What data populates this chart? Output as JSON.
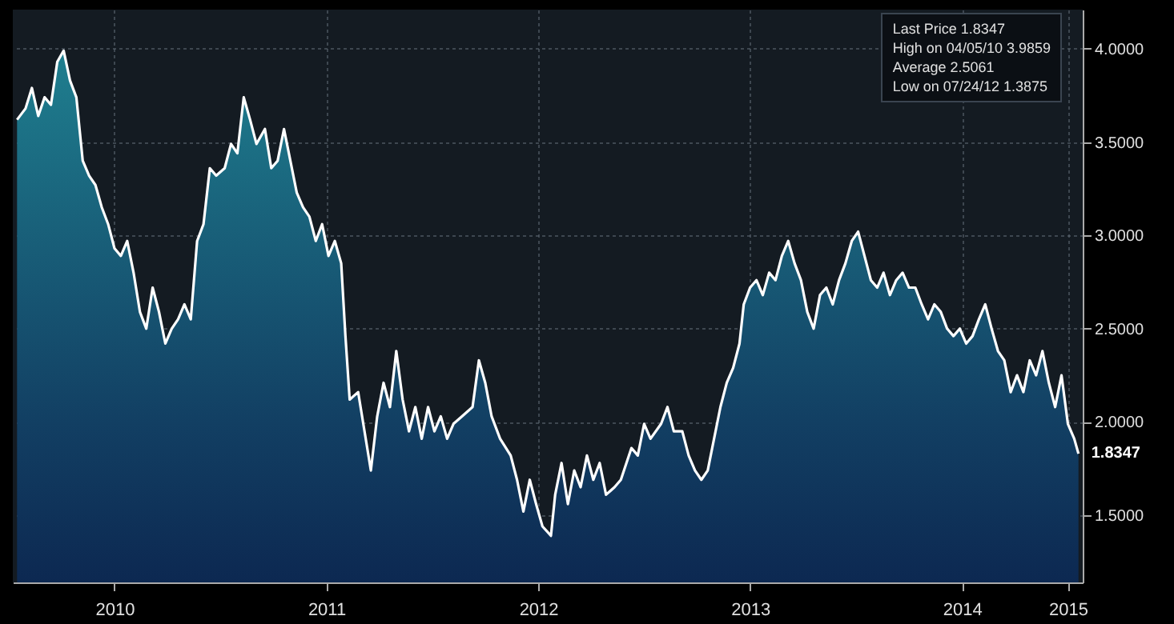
{
  "chart_data": {
    "type": "area",
    "xlim": [
      2010.02,
      2015.07
    ],
    "ylim": [
      1.14,
      4.21
    ],
    "xticks": [
      {
        "value": 2010.5,
        "label": "2010"
      },
      {
        "value": 2011.5,
        "label": "2011"
      },
      {
        "value": 2012.5,
        "label": "2012"
      },
      {
        "value": 2013.5,
        "label": "2013"
      },
      {
        "value": 2014.5,
        "label": "2014"
      },
      {
        "value": 2015.0,
        "label": "2015"
      }
    ],
    "yticks": [
      {
        "value": 1.5,
        "label": "1.5000"
      },
      {
        "value": 2,
        "label": "2.0000"
      },
      {
        "value": 2.5,
        "label": "2.5000"
      },
      {
        "value": 3,
        "label": "3.0000"
      },
      {
        "value": 3.5,
        "label": "3.5000"
      },
      {
        "value": 4,
        "label": "4.0000"
      }
    ],
    "grid": true,
    "x": [
      2010.04,
      2010.08,
      2010.11,
      2010.14,
      2010.17,
      2010.2,
      2010.23,
      2010.26,
      2010.29,
      2010.32,
      2010.35,
      2010.38,
      2010.41,
      2010.44,
      2010.47,
      2010.5,
      2010.53,
      2010.56,
      2010.59,
      2010.62,
      2010.65,
      2010.68,
      2010.71,
      2010.74,
      2010.77,
      2010.8,
      2010.83,
      2010.86,
      2010.89,
      2010.92,
      2010.95,
      2010.98,
      2011.02,
      2011.05,
      2011.08,
      2011.11,
      2011.14,
      2011.17,
      2011.21,
      2011.24,
      2011.27,
      2011.3,
      2011.33,
      2011.36,
      2011.39,
      2011.42,
      2011.45,
      2011.48,
      2011.51,
      2011.54,
      2011.57,
      2011.59,
      2011.61,
      2011.65,
      2011.68,
      2011.71,
      2011.74,
      2011.77,
      2011.8,
      2011.83,
      2011.86,
      2011.89,
      2011.92,
      2011.95,
      2011.98,
      2012.01,
      2012.04,
      2012.07,
      2012.1,
      2012.14,
      2012.19,
      2012.22,
      2012.25,
      2012.28,
      2012.32,
      2012.37,
      2012.4,
      2012.43,
      2012.46,
      2012.49,
      2012.52,
      2012.56,
      2012.58,
      2012.61,
      2012.64,
      2012.67,
      2012.7,
      2012.73,
      2012.76,
      2012.79,
      2012.82,
      2012.86,
      2012.89,
      2012.94,
      2012.97,
      2013.0,
      2013.03,
      2013.08,
      2013.11,
      2013.14,
      2013.18,
      2013.21,
      2013.24,
      2013.27,
      2013.3,
      2013.33,
      2013.36,
      2013.39,
      2013.42,
      2013.45,
      2013.47,
      2013.5,
      2013.53,
      2013.56,
      2013.59,
      2013.62,
      2013.65,
      2013.68,
      2013.71,
      2013.74,
      2013.77,
      2013.8,
      2013.83,
      2013.86,
      2013.89,
      2013.92,
      2013.95,
      2013.98,
      2014.01,
      2014.04,
      2014.07,
      2014.1,
      2014.13,
      2014.16,
      2014.19,
      2014.22,
      2014.25,
      2014.28,
      2014.31,
      2014.34,
      2014.37,
      2014.4,
      2014.43,
      2014.46,
      2014.49,
      2014.52,
      2014.55,
      2014.58,
      2014.61,
      2014.64,
      2014.67,
      2014.7,
      2014.73,
      2014.76,
      2014.79,
      2014.82,
      2014.85,
      2014.88,
      2014.91,
      2014.94,
      2014.97,
      2015.0,
      2015.03,
      2015.05
    ],
    "series": [
      {
        "color": "#ffffff",
        "values": [
          3.62,
          3.68,
          3.79,
          3.64,
          3.74,
          3.7,
          3.93,
          3.99,
          3.83,
          3.74,
          3.4,
          3.32,
          3.27,
          3.15,
          3.06,
          2.93,
          2.89,
          2.97,
          2.8,
          2.59,
          2.5,
          2.72,
          2.59,
          2.42,
          2.5,
          2.55,
          2.63,
          2.55,
          2.97,
          3.06,
          3.36,
          3.32,
          3.36,
          3.49,
          3.44,
          3.74,
          3.62,
          3.49,
          3.57,
          3.36,
          3.4,
          3.57,
          3.4,
          3.23,
          3.15,
          3.1,
          2.97,
          3.06,
          2.89,
          2.97,
          2.85,
          2.46,
          2.12,
          2.16,
          1.95,
          1.74,
          2.03,
          2.21,
          2.08,
          2.38,
          2.12,
          1.95,
          2.08,
          1.91,
          2.08,
          1.95,
          2.03,
          1.91,
          1.99,
          2.03,
          2.08,
          2.33,
          2.21,
          2.03,
          1.91,
          1.82,
          1.69,
          1.52,
          1.69,
          1.56,
          1.44,
          1.39,
          1.61,
          1.78,
          1.56,
          1.74,
          1.65,
          1.82,
          1.69,
          1.78,
          1.61,
          1.65,
          1.69,
          1.86,
          1.82,
          1.99,
          1.91,
          1.99,
          2.08,
          1.95,
          1.95,
          1.82,
          1.74,
          1.69,
          1.74,
          1.91,
          2.08,
          2.21,
          2.29,
          2.42,
          2.63,
          2.72,
          2.76,
          2.68,
          2.8,
          2.76,
          2.89,
          2.97,
          2.85,
          2.76,
          2.59,
          2.5,
          2.68,
          2.72,
          2.63,
          2.76,
          2.85,
          2.97,
          3.02,
          2.89,
          2.76,
          2.72,
          2.8,
          2.68,
          2.76,
          2.8,
          2.72,
          2.72,
          2.63,
          2.55,
          2.63,
          2.59,
          2.5,
          2.46,
          2.5,
          2.42,
          2.46,
          2.55,
          2.63,
          2.5,
          2.38,
          2.33,
          2.16,
          2.25,
          2.16,
          2.33,
          2.25,
          2.38,
          2.21,
          2.08,
          2.25,
          1.99,
          1.91,
          1.83
        ]
      }
    ],
    "annotations": [
      "Last Price 1.8347",
      "High on 04/05/10 3.9859",
      "Average 2.5061",
      "Low on 07/24/12 1.3875",
      {
        "text": "1.8347",
        "x": 2015.05,
        "y": 1.8347
      }
    ]
  }
}
